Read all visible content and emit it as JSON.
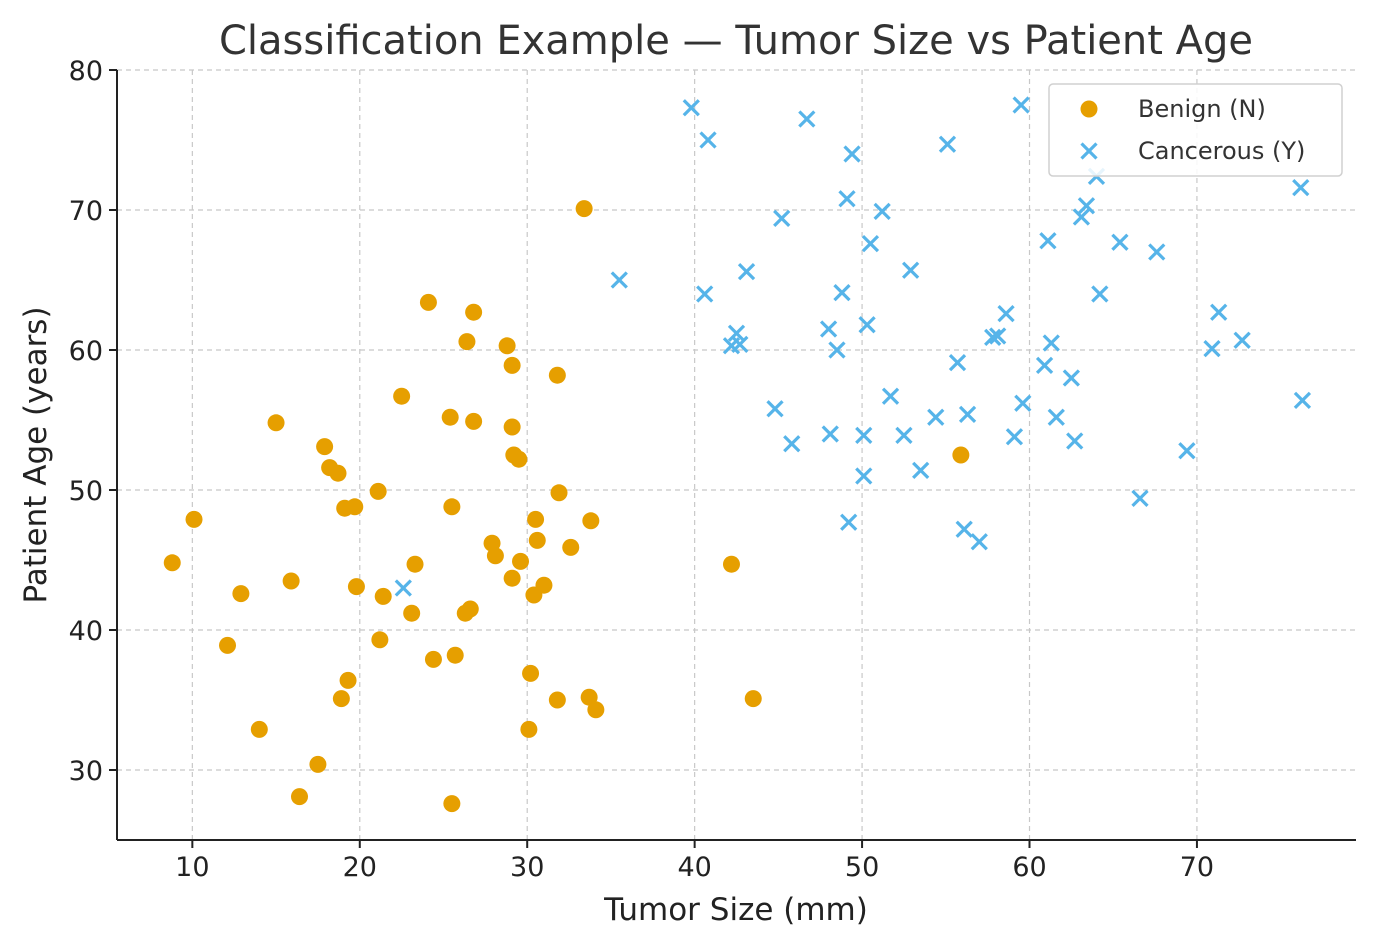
{
  "chart_data": {
    "type": "scatter",
    "title": "Classification Example — Tumor Size vs Patient Age",
    "xlabel": "Tumor Size (mm)",
    "ylabel": "Patient Age (years)",
    "xlim": [
      5.5,
      79.5
    ],
    "ylim": [
      25,
      80
    ],
    "xticks": [
      10,
      20,
      30,
      40,
      50,
      60,
      70
    ],
    "yticks": [
      30,
      40,
      50,
      60,
      70,
      80
    ],
    "grid": true,
    "legend_position": "top-right",
    "series": [
      {
        "name": "Benign (N)",
        "marker": "circle",
        "color": "#E69F00",
        "points": [
          [
            8.8,
            44.8
          ],
          [
            10.1,
            47.9
          ],
          [
            12.1,
            38.9
          ],
          [
            12.9,
            42.6
          ],
          [
            14.0,
            32.9
          ],
          [
            15.0,
            54.8
          ],
          [
            15.9,
            43.5
          ],
          [
            16.4,
            28.1
          ],
          [
            17.5,
            30.4
          ],
          [
            17.9,
            53.1
          ],
          [
            18.2,
            51.6
          ],
          [
            18.7,
            51.2
          ],
          [
            18.9,
            35.1
          ],
          [
            19.1,
            48.7
          ],
          [
            19.3,
            36.4
          ],
          [
            19.7,
            48.8
          ],
          [
            19.8,
            43.1
          ],
          [
            21.1,
            49.9
          ],
          [
            21.2,
            39.3
          ],
          [
            21.4,
            42.4
          ],
          [
            22.5,
            56.7
          ],
          [
            23.1,
            41.2
          ],
          [
            23.3,
            44.7
          ],
          [
            24.1,
            63.4
          ],
          [
            24.4,
            37.9
          ],
          [
            25.4,
            55.2
          ],
          [
            25.5,
            48.8
          ],
          [
            25.5,
            27.6
          ],
          [
            25.7,
            38.2
          ],
          [
            26.3,
            41.2
          ],
          [
            26.4,
            60.6
          ],
          [
            26.6,
            41.5
          ],
          [
            26.8,
            62.7
          ],
          [
            26.8,
            54.9
          ],
          [
            27.9,
            46.2
          ],
          [
            28.1,
            45.3
          ],
          [
            28.8,
            60.3
          ],
          [
            29.1,
            43.7
          ],
          [
            29.1,
            58.9
          ],
          [
            29.1,
            54.5
          ],
          [
            29.2,
            52.5
          ],
          [
            29.5,
            52.2
          ],
          [
            29.6,
            44.9
          ],
          [
            30.1,
            32.9
          ],
          [
            30.2,
            36.9
          ],
          [
            30.4,
            42.5
          ],
          [
            30.5,
            47.9
          ],
          [
            30.6,
            46.4
          ],
          [
            31.0,
            43.2
          ],
          [
            31.8,
            58.2
          ],
          [
            31.8,
            35.0
          ],
          [
            31.9,
            49.8
          ],
          [
            32.6,
            45.9
          ],
          [
            33.4,
            70.1
          ],
          [
            33.7,
            35.2
          ],
          [
            33.8,
            47.8
          ],
          [
            34.1,
            34.3
          ],
          [
            42.2,
            44.7
          ],
          [
            43.5,
            35.1
          ],
          [
            55.9,
            52.5
          ]
        ]
      },
      {
        "name": "Cancerous (Y)",
        "marker": "x",
        "color": "#56B4E9",
        "points": [
          [
            22.6,
            43.0
          ],
          [
            35.5,
            65.0
          ],
          [
            39.8,
            77.3
          ],
          [
            40.6,
            64.0
          ],
          [
            40.8,
            75.0
          ],
          [
            42.2,
            60.3
          ],
          [
            42.5,
            61.2
          ],
          [
            42.7,
            60.4
          ],
          [
            43.1,
            65.6
          ],
          [
            44.8,
            55.8
          ],
          [
            45.2,
            69.4
          ],
          [
            45.8,
            53.3
          ],
          [
            46.7,
            76.5
          ],
          [
            48.0,
            61.5
          ],
          [
            48.1,
            54.0
          ],
          [
            48.5,
            60.0
          ],
          [
            48.8,
            64.1
          ],
          [
            49.1,
            70.8
          ],
          [
            49.2,
            47.7
          ],
          [
            49.4,
            74.0
          ],
          [
            50.1,
            53.9
          ],
          [
            50.1,
            51.0
          ],
          [
            50.3,
            61.8
          ],
          [
            50.5,
            67.6
          ],
          [
            51.2,
            69.9
          ],
          [
            51.7,
            56.7
          ],
          [
            52.5,
            53.9
          ],
          [
            52.9,
            65.7
          ],
          [
            53.5,
            51.4
          ],
          [
            54.4,
            55.2
          ],
          [
            55.1,
            74.7
          ],
          [
            55.7,
            59.1
          ],
          [
            56.1,
            47.2
          ],
          [
            56.3,
            55.4
          ],
          [
            57.0,
            46.3
          ],
          [
            57.8,
            60.9
          ],
          [
            58.1,
            61.0
          ],
          [
            58.6,
            62.6
          ],
          [
            59.1,
            53.8
          ],
          [
            59.5,
            77.5
          ],
          [
            59.6,
            56.2
          ],
          [
            60.9,
            58.9
          ],
          [
            61.1,
            67.8
          ],
          [
            61.3,
            60.5
          ],
          [
            61.6,
            55.2
          ],
          [
            62.5,
            58.0
          ],
          [
            62.7,
            53.5
          ],
          [
            63.1,
            69.5
          ],
          [
            63.4,
            70.3
          ],
          [
            64.0,
            72.4
          ],
          [
            64.2,
            64.0
          ],
          [
            65.4,
            67.7
          ],
          [
            66.6,
            49.4
          ],
          [
            67.6,
            67.0
          ],
          [
            69.4,
            52.8
          ],
          [
            70.9,
            60.1
          ],
          [
            71.3,
            62.7
          ],
          [
            72.7,
            60.7
          ],
          [
            76.2,
            71.6
          ],
          [
            76.3,
            56.4
          ]
        ]
      }
    ]
  }
}
